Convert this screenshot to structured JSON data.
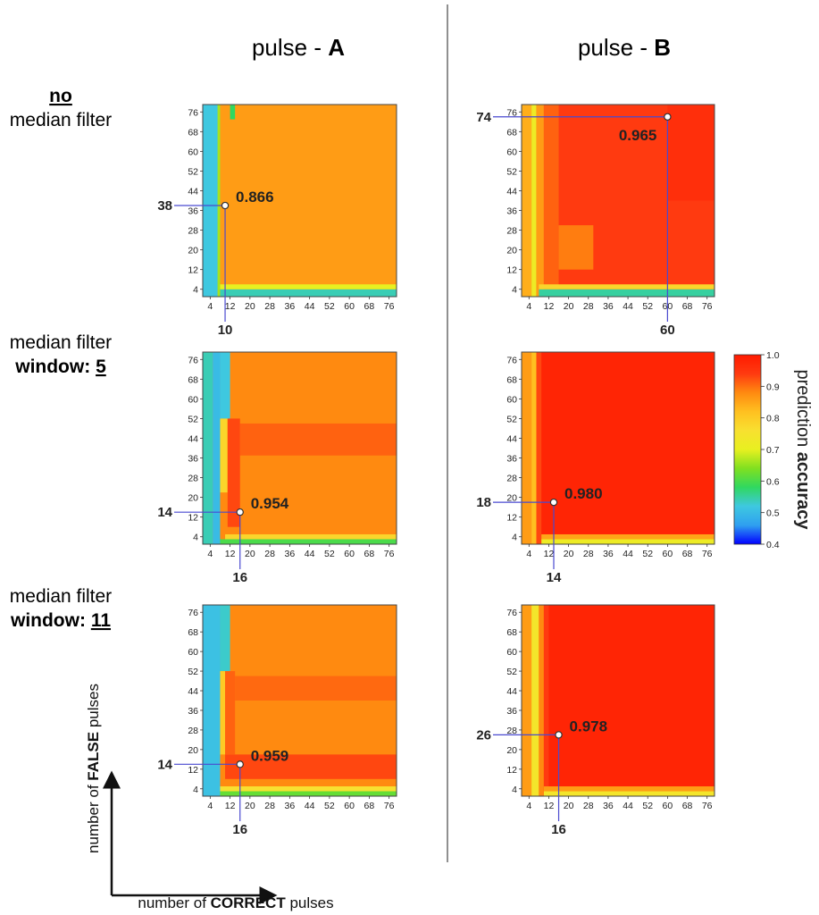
{
  "chart_data": {
    "type": "heatmap",
    "columns": [
      {
        "prefix": "pulse - ",
        "letter": "A"
      },
      {
        "prefix": "pulse - ",
        "letter": "B"
      }
    ],
    "rows": [
      {
        "line1_bold_underlined": "no",
        "line1_rest": "",
        "line2_prefix": "median filter",
        "line2_value": ""
      },
      {
        "line1_bold_underlined": "",
        "line1_rest": "median filter",
        "line2_prefix": "window: ",
        "line2_value": "5"
      },
      {
        "line1_bold_underlined": "",
        "line1_rest": "median filter",
        "line2_prefix": "window: ",
        "line2_value": "11"
      }
    ],
    "x_ticks": [
      "4",
      "12",
      "20",
      "28",
      "36",
      "44",
      "52",
      "60",
      "68",
      "76"
    ],
    "y_ticks": [
      "76",
      "68",
      "60",
      "52",
      "44",
      "36",
      "28",
      "20",
      "12",
      "4"
    ],
    "axis_range": [
      1,
      79
    ],
    "x_axis": {
      "prefix": "number of ",
      "bold": "CORRECT",
      "suffix": " pulses"
    },
    "y_axis": {
      "prefix": "number of ",
      "bold": "FALSE",
      "suffix": " pulses"
    },
    "colorbar": {
      "range": [
        0.4,
        1.0
      ],
      "ticks": [
        "1.0",
        "0.9",
        "0.8",
        "0.7",
        "0.6",
        "0.5",
        "0.4"
      ],
      "title_regular": "prediction ",
      "title_bold": "accuracy",
      "colors": [
        "#0000ff",
        "#2fa0f0",
        "#3ec8e0",
        "#30d860",
        "#80e020",
        "#e8f020",
        "#f8e030",
        "#ffc020",
        "#ff8a10",
        "#ff3a10",
        "#ff1a00"
      ]
    },
    "panels": [
      {
        "pulse": "A",
        "filter": "none",
        "best_correct": 10,
        "best_false": 38,
        "best_accuracy": 0.866,
        "x_label": "10",
        "y_label": "38",
        "value_label": "0.866",
        "regions": [
          {
            "x0": 1,
            "x1": 79,
            "y0": 1,
            "y1": 79,
            "value": 0.86
          },
          {
            "x0": 1,
            "x1": 7,
            "y0": 1,
            "y1": 79,
            "value": 0.52
          },
          {
            "x0": 7,
            "x1": 8,
            "y0": 1,
            "y1": 79,
            "value": 0.66
          },
          {
            "x0": 8,
            "x1": 79,
            "y0": 1,
            "y1": 4,
            "value": 0.54
          },
          {
            "x0": 8,
            "x1": 79,
            "y0": 4,
            "y1": 6,
            "value": 0.7
          },
          {
            "x0": 12,
            "x1": 14,
            "y0": 73,
            "y1": 79,
            "value": 0.58
          }
        ]
      },
      {
        "pulse": "B",
        "filter": "none",
        "best_correct": 60,
        "best_false": 74,
        "best_accuracy": 0.965,
        "x_label": "60",
        "y_label": "74",
        "value_label": "0.965",
        "regions": [
          {
            "x0": 1,
            "x1": 79,
            "y0": 1,
            "y1": 79,
            "value": 0.94
          },
          {
            "x0": 1,
            "x1": 5,
            "y0": 1,
            "y1": 79,
            "value": 0.84
          },
          {
            "x0": 5,
            "x1": 7,
            "y0": 1,
            "y1": 79,
            "value": 0.72
          },
          {
            "x0": 7,
            "x1": 10,
            "y0": 1,
            "y1": 79,
            "value": 0.86
          },
          {
            "x0": 10,
            "x1": 16,
            "y0": 1,
            "y1": 79,
            "value": 0.91
          },
          {
            "x0": 16,
            "x1": 30,
            "y0": 12,
            "y1": 30,
            "value": 0.89
          },
          {
            "x0": 8,
            "x1": 79,
            "y0": 1,
            "y1": 4,
            "value": 0.55
          },
          {
            "x0": 8,
            "x1": 79,
            "y0": 4,
            "y1": 6,
            "value": 0.78
          },
          {
            "x0": 60,
            "x1": 79,
            "y0": 40,
            "y1": 79,
            "value": 0.96
          }
        ]
      },
      {
        "pulse": "A",
        "filter": "window 5",
        "best_correct": 16,
        "best_false": 14,
        "best_accuracy": 0.954,
        "x_label": "16",
        "y_label": "14",
        "value_label": "0.954",
        "regions": [
          {
            "x0": 1,
            "x1": 79,
            "y0": 1,
            "y1": 79,
            "value": 0.88
          },
          {
            "x0": 16,
            "x1": 79,
            "y0": 37,
            "y1": 50,
            "value": 0.91
          },
          {
            "x0": 1,
            "x1": 5,
            "y0": 1,
            "y1": 79,
            "value": 0.54
          },
          {
            "x0": 5,
            "x1": 8,
            "y0": 1,
            "y1": 79,
            "value": 0.5
          },
          {
            "x0": 8,
            "x1": 12,
            "y0": 52,
            "y1": 79,
            "value": 0.52
          },
          {
            "x0": 8,
            "x1": 11,
            "y0": 22,
            "y1": 52,
            "value": 0.78
          },
          {
            "x0": 11,
            "x1": 16,
            "y0": 8,
            "y1": 52,
            "value": 0.93
          },
          {
            "x0": 8,
            "x1": 79,
            "y0": 1,
            "y1": 3,
            "value": 0.6
          },
          {
            "x0": 10,
            "x1": 79,
            "y0": 3,
            "y1": 5,
            "value": 0.78
          }
        ]
      },
      {
        "pulse": "B",
        "filter": "window 5",
        "best_correct": 14,
        "best_false": 18,
        "best_accuracy": 0.98,
        "x_label": "14",
        "y_label": "18",
        "value_label": "0.980",
        "regions": [
          {
            "x0": 1,
            "x1": 79,
            "y0": 1,
            "y1": 79,
            "value": 0.98
          },
          {
            "x0": 1,
            "x1": 5,
            "y0": 1,
            "y1": 79,
            "value": 0.86
          },
          {
            "x0": 5,
            "x1": 7,
            "y0": 1,
            "y1": 79,
            "value": 0.82
          },
          {
            "x0": 7,
            "x1": 9,
            "y0": 1,
            "y1": 79,
            "value": 0.93
          },
          {
            "x0": 9,
            "x1": 79,
            "y0": 1,
            "y1": 3,
            "value": 0.72
          },
          {
            "x0": 9,
            "x1": 79,
            "y0": 3,
            "y1": 5,
            "value": 0.85
          }
        ]
      },
      {
        "pulse": "A",
        "filter": "window 11",
        "best_correct": 16,
        "best_false": 14,
        "best_accuracy": 0.959,
        "x_label": "16",
        "y_label": "14",
        "value_label": "0.959",
        "regions": [
          {
            "x0": 1,
            "x1": 79,
            "y0": 1,
            "y1": 79,
            "value": 0.88
          },
          {
            "x0": 14,
            "x1": 79,
            "y0": 40,
            "y1": 50,
            "value": 0.905
          },
          {
            "x0": 10,
            "x1": 79,
            "y0": 8,
            "y1": 18,
            "value": 0.93
          },
          {
            "x0": 1,
            "x1": 8,
            "y0": 1,
            "y1": 79,
            "value": 0.51
          },
          {
            "x0": 8,
            "x1": 12,
            "y0": 52,
            "y1": 79,
            "value": 0.53
          },
          {
            "x0": 8,
            "x1": 10,
            "y0": 18,
            "y1": 52,
            "value": 0.8
          },
          {
            "x0": 10,
            "x1": 14,
            "y0": 18,
            "y1": 52,
            "value": 0.91
          },
          {
            "x0": 8,
            "x1": 79,
            "y0": 1,
            "y1": 3,
            "value": 0.62
          },
          {
            "x0": 8,
            "x1": 79,
            "y0": 3,
            "y1": 5,
            "value": 0.76
          }
        ]
      },
      {
        "pulse": "B",
        "filter": "window 11",
        "best_correct": 16,
        "best_false": 26,
        "best_accuracy": 0.978,
        "x_label": "16",
        "y_label": "26",
        "value_label": "0.978",
        "regions": [
          {
            "x0": 1,
            "x1": 79,
            "y0": 1,
            "y1": 79,
            "value": 0.98
          },
          {
            "x0": 1,
            "x1": 5,
            "y0": 1,
            "y1": 79,
            "value": 0.86
          },
          {
            "x0": 5,
            "x1": 8,
            "y0": 1,
            "y1": 79,
            "value": 0.74
          },
          {
            "x0": 8,
            "x1": 10,
            "y0": 1,
            "y1": 79,
            "value": 0.88
          },
          {
            "x0": 10,
            "x1": 12,
            "y0": 1,
            "y1": 79,
            "value": 0.94
          },
          {
            "x0": 10,
            "x1": 79,
            "y0": 1,
            "y1": 3,
            "value": 0.74
          },
          {
            "x0": 10,
            "x1": 79,
            "y0": 3,
            "y1": 5,
            "value": 0.86
          }
        ]
      }
    ]
  }
}
